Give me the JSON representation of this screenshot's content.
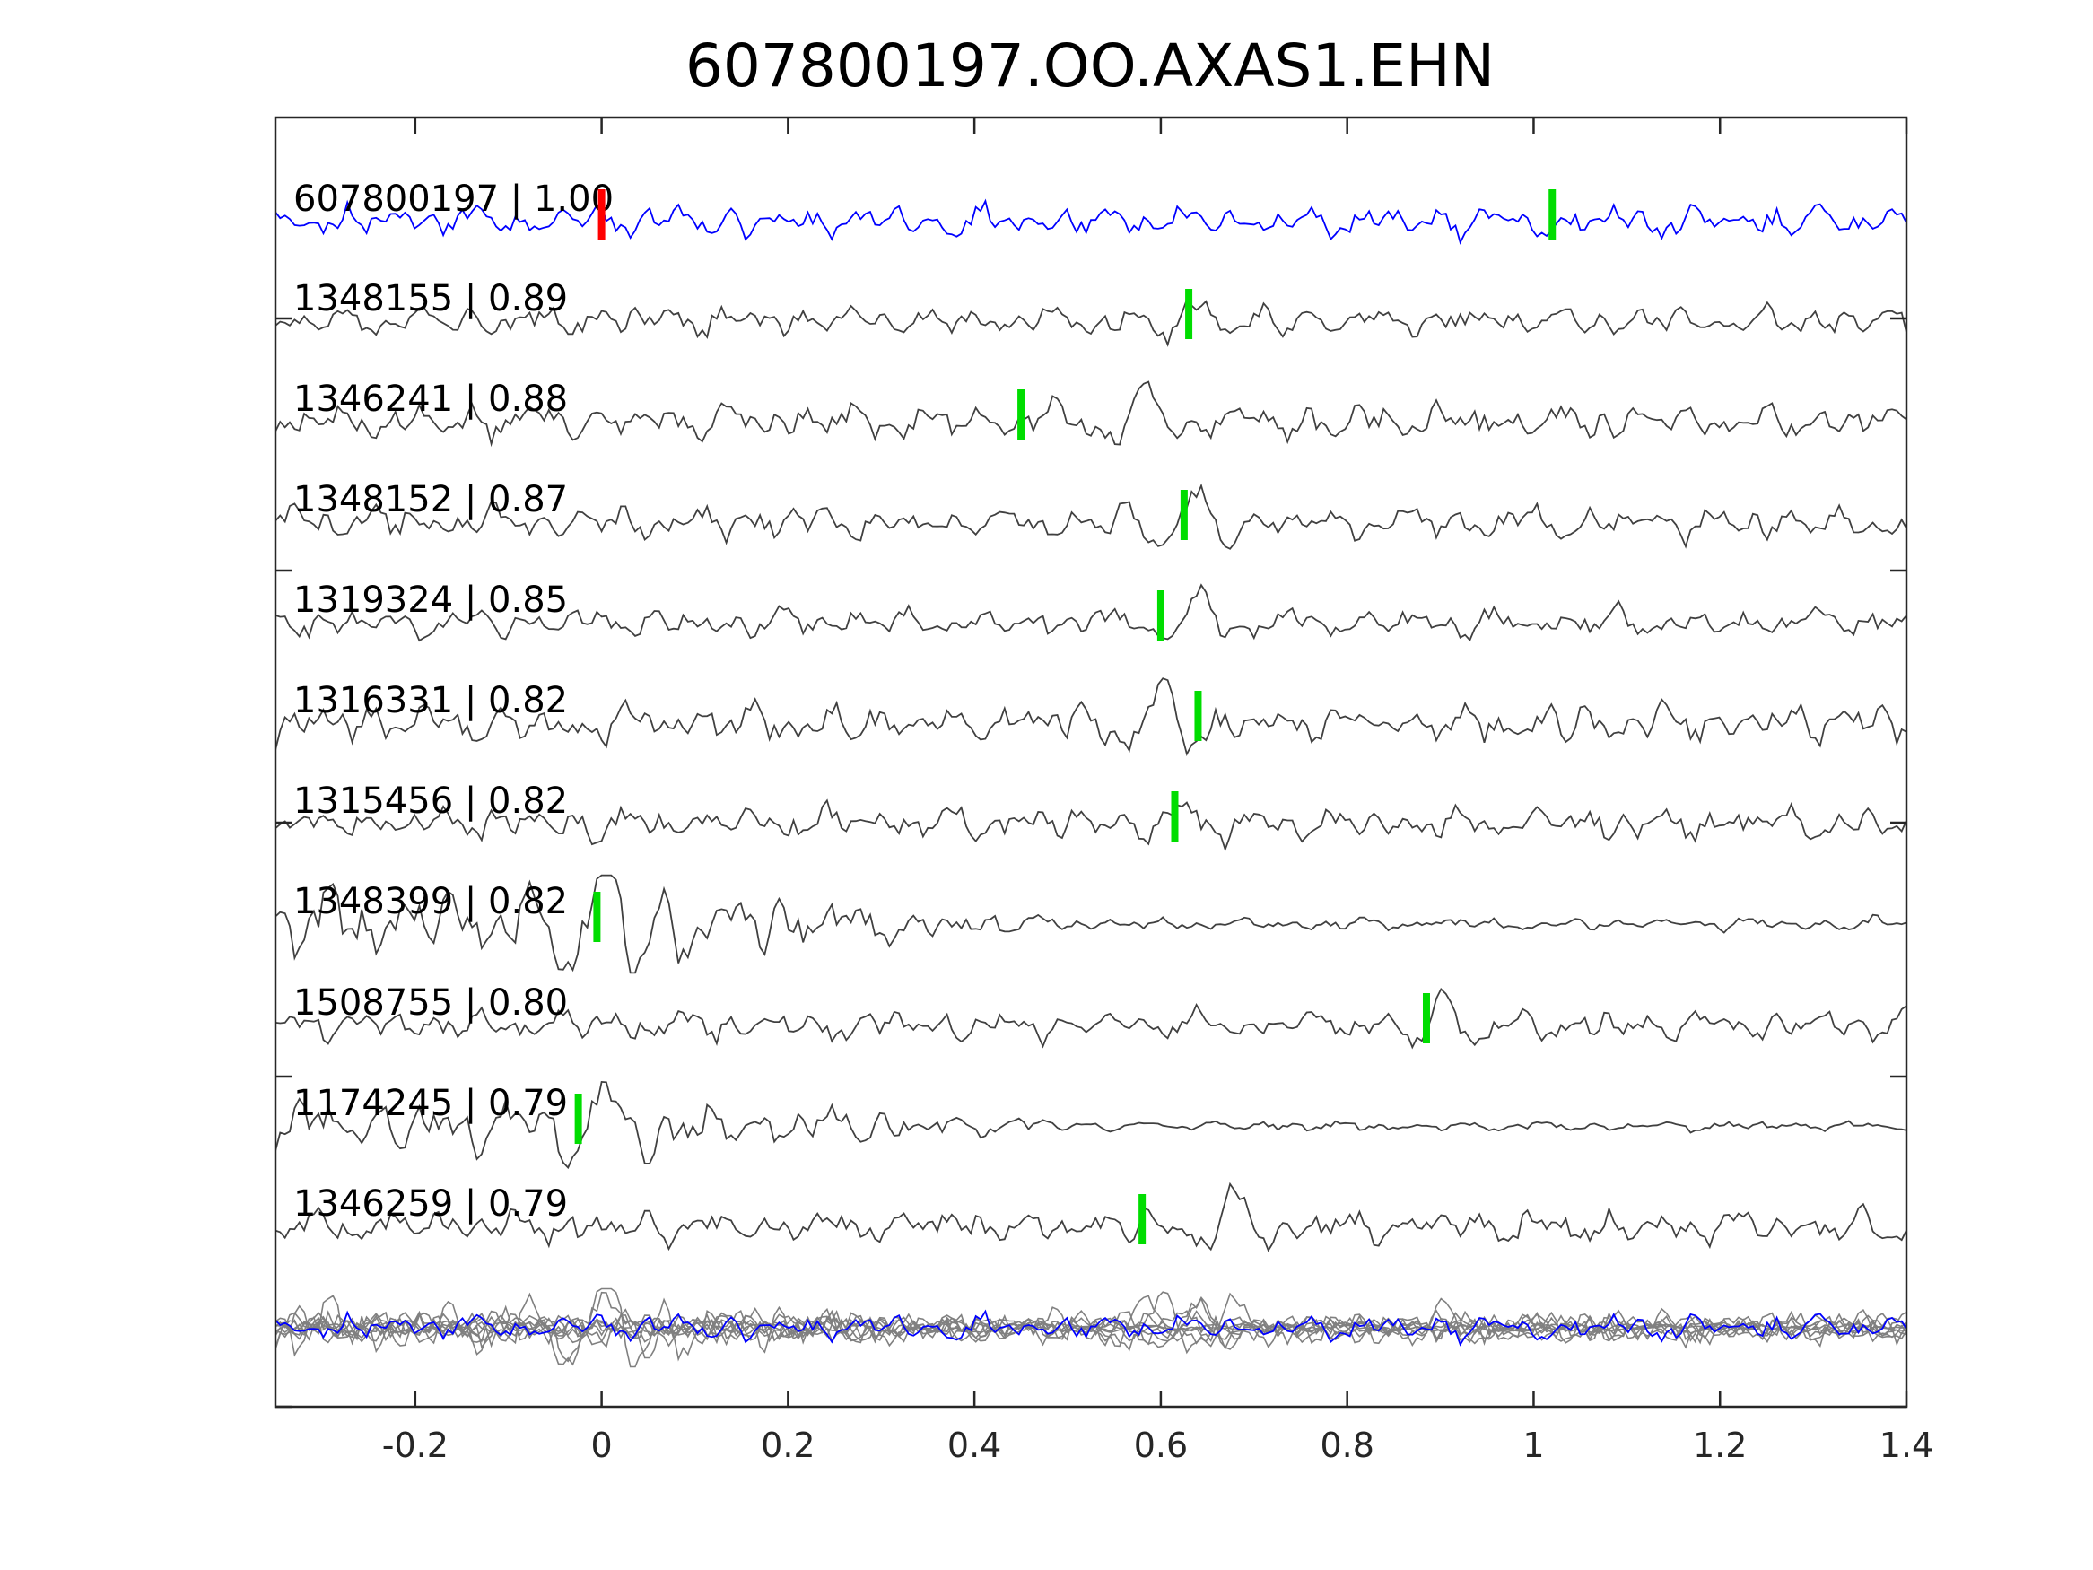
{
  "chart_data": {
    "type": "line",
    "title": "607800197.OO.AXAS1.EHN",
    "xlabel": "",
    "ylabel": "",
    "xlim": [
      -0.35,
      1.4
    ],
    "xticks": [
      -0.2,
      0,
      0.2,
      0.4,
      0.6,
      0.8,
      1,
      1.2,
      1.4
    ],
    "xtick_labels": [
      "-0.2",
      "0",
      "0.2",
      "0.4",
      "0.6",
      "0.8",
      "1",
      "1.2",
      "1.4"
    ],
    "grid": false,
    "colors": {
      "template": "#0000ff",
      "trace": "#404040",
      "stack": "#808080",
      "green_pick": "#00dd00",
      "red_pick": "#ff0000"
    },
    "series": [
      {
        "label": "607800197 | 1.00",
        "role": "template",
        "red_pick": 0.0,
        "green_pick": 1.02,
        "arrival": 0.58,
        "amp": 1.0
      },
      {
        "label": "1348155 | 0.89",
        "role": "match",
        "green_pick": 0.63,
        "arrival": 0.64,
        "amp": 0.9
      },
      {
        "label": "1346241 | 0.88",
        "role": "match",
        "green_pick": 0.45,
        "arrival": 0.58,
        "amp": 1.1
      },
      {
        "label": "1348152 | 0.87",
        "role": "match",
        "green_pick": 0.625,
        "arrival": 0.63,
        "amp": 1.0
      },
      {
        "label": "1319324 | 0.85",
        "role": "match",
        "green_pick": 0.6,
        "arrival": 0.64,
        "amp": 0.9
      },
      {
        "label": "1316331 | 0.82",
        "role": "match",
        "green_pick": 0.64,
        "arrival": 0.6,
        "amp": 1.2
      },
      {
        "label": "1315456 | 0.82",
        "role": "match",
        "green_pick": 0.615,
        "arrival": 0.62,
        "amp": 1.0
      },
      {
        "label": "1348399 | 0.82",
        "role": "match",
        "green_pick": -0.005,
        "arrival": 0.0,
        "amp": 1.3
      },
      {
        "label": "1508755 | 0.80",
        "role": "match",
        "green_pick": 0.885,
        "arrival": 0.9,
        "amp": 0.9
      },
      {
        "label": "1174245 | 0.79",
        "role": "match",
        "green_pick": -0.025,
        "arrival": 0.0,
        "amp": 1.0
      },
      {
        "label": "1346259 | 0.79",
        "role": "match",
        "green_pick": 0.58,
        "arrival": 0.68,
        "amp": 1.0
      },
      {
        "label": "",
        "role": "stack",
        "amp": 1.0
      }
    ]
  }
}
